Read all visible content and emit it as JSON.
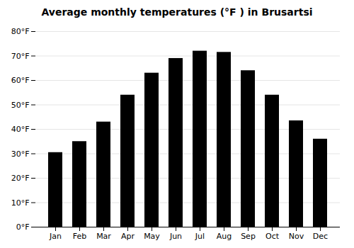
{
  "chart_data": {
    "type": "bar",
    "title": "Average monthly temperatures (°F ) in Brusartsi",
    "categories": [
      "Jan",
      "Feb",
      "Mar",
      "Apr",
      "May",
      "Jun",
      "Jul",
      "Aug",
      "Sep",
      "Oct",
      "Nov",
      "Dec"
    ],
    "values": [
      30.5,
      35.0,
      43.0,
      54.0,
      63.0,
      69.0,
      72.0,
      71.5,
      64.0,
      54.0,
      43.5,
      36.0
    ],
    "ylim": [
      0,
      80
    ],
    "yticks": [
      {
        "value": 0,
        "label": "0°F"
      },
      {
        "value": 10,
        "label": "10°F"
      },
      {
        "value": 20,
        "label": "20°F"
      },
      {
        "value": 30,
        "label": "30°F"
      },
      {
        "value": 40,
        "label": "40°F"
      },
      {
        "value": 50,
        "label": "50°F"
      },
      {
        "value": 60,
        "label": "60°F"
      },
      {
        "value": 70,
        "label": "70°F"
      },
      {
        "value": 80,
        "label": "80°F"
      }
    ],
    "grid": true
  }
}
